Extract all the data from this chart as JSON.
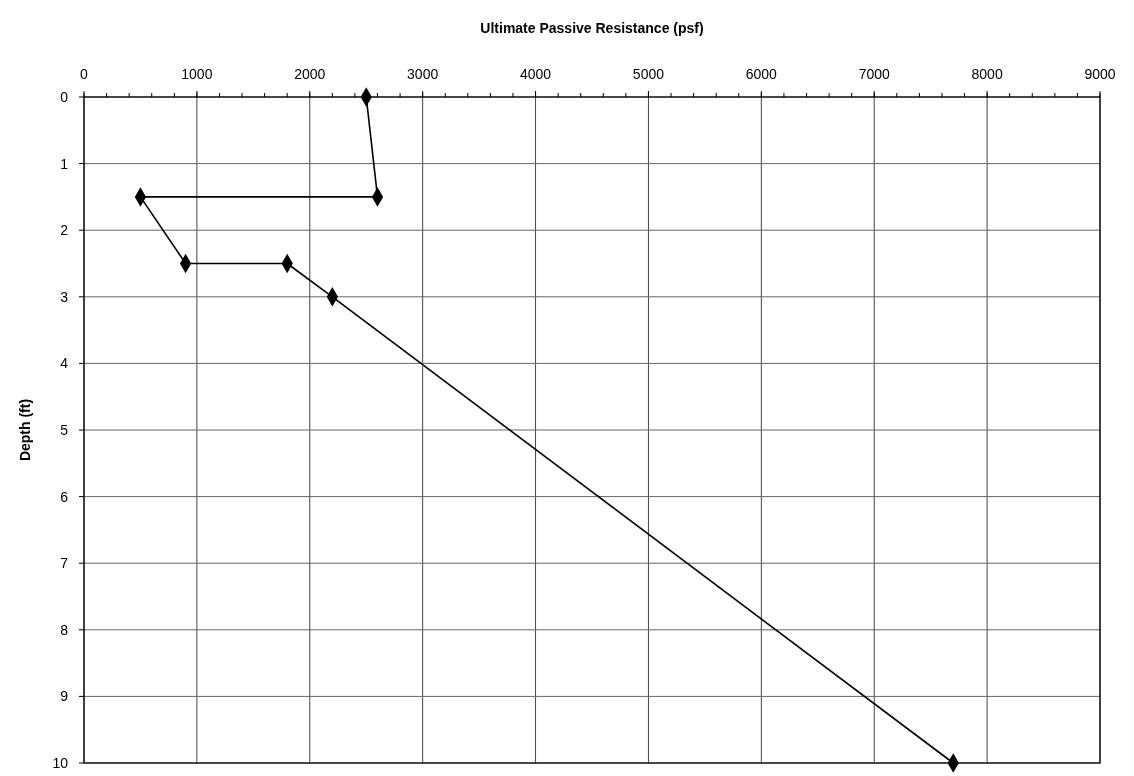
{
  "chart_data": {
    "type": "line",
    "xlabel": "Ultimate Passive Resistance (psf)",
    "ylabel": "Depth (ft)",
    "x": [
      2500,
      2600,
      500,
      900,
      1800,
      2200,
      7700
    ],
    "series": [
      {
        "color": "#000000",
        "values": [
          0,
          1.5,
          1.5,
          2.5,
          2.5,
          3,
          10
        ]
      }
    ],
    "xlim": [
      0,
      9000
    ],
    "ylim": [
      10,
      0
    ],
    "xticks": [
      0,
      1000,
      2000,
      3000,
      4000,
      5000,
      6000,
      7000,
      8000,
      9000
    ],
    "yticks": [
      0,
      1,
      2,
      3,
      4,
      5,
      6,
      7,
      8,
      9,
      10
    ],
    "grid": true,
    "marker": "diamond",
    "line_style": "solid"
  }
}
